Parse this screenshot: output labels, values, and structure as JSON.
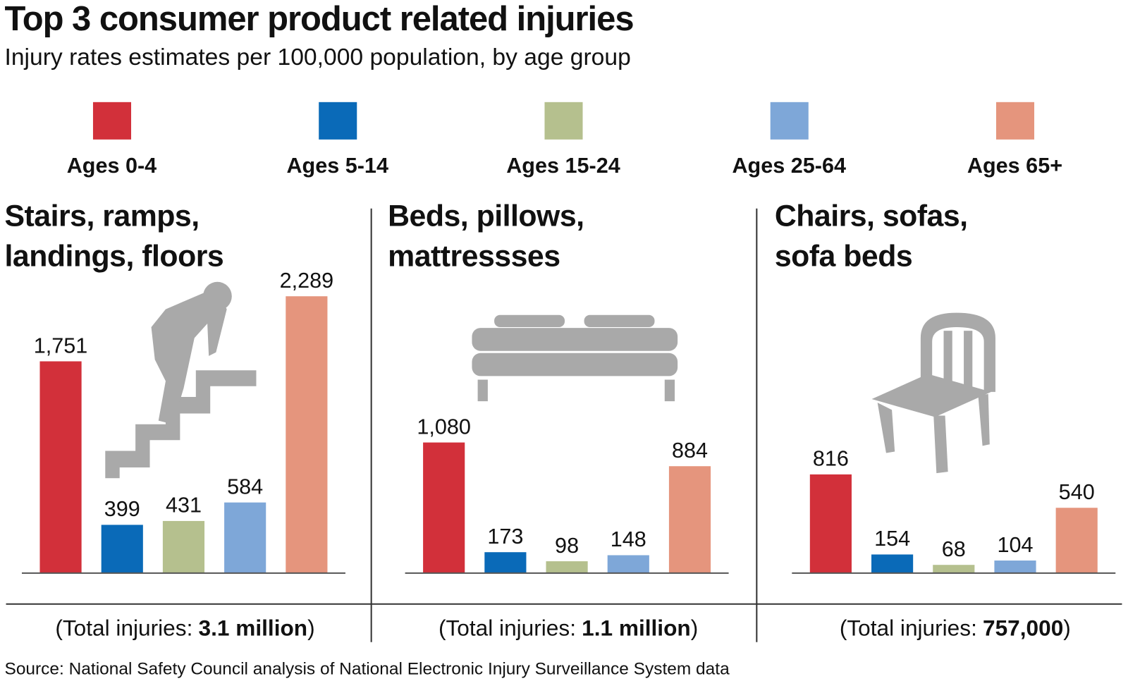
{
  "title": "Top 3 consumer product related injuries",
  "subtitle": "Injury rates estimates per 100,000 population, by age group",
  "legend": {
    "categories": [
      "Ages 0-4",
      "Ages 5-14",
      "Ages 15-24",
      "Ages 25-64",
      "Ages 65+"
    ],
    "colors": [
      "#d2303a",
      "#0a6ab8",
      "#b5c08e",
      "#7ea7d8",
      "#e5957d"
    ]
  },
  "chart_data": [
    {
      "type": "bar",
      "title": [
        "Stairs, ramps,",
        "landings, floors"
      ],
      "values": [
        1751,
        399,
        431,
        584,
        2289
      ],
      "value_labels": [
        "1,751",
        "399",
        "431",
        "584",
        "2,289"
      ],
      "total_prefix": "(Total injuries:",
      "total": "3.1 million",
      "total_suffix": ")"
    },
    {
      "type": "bar",
      "title": [
        "Beds, pillows,",
        "mattressses"
      ],
      "values": [
        1080,
        173,
        98,
        148,
        884
      ],
      "value_labels": [
        "1,080",
        "173",
        "98",
        "148",
        "884"
      ],
      "total_prefix": "(Total injuries:",
      "total": "1.1 million",
      "total_suffix": ")"
    },
    {
      "type": "bar",
      "title": [
        "Chairs, sofas,",
        "sofa beds"
      ],
      "values": [
        816,
        154,
        68,
        104,
        540
      ],
      "value_labels": [
        "816",
        "154",
        "68",
        "104",
        "540"
      ],
      "total_prefix": "(Total injuries:",
      "total": "757,000",
      "total_suffix": ")"
    }
  ],
  "source": "Source: National Safety Council analysis of National Electronic Injury Surveillance System data"
}
